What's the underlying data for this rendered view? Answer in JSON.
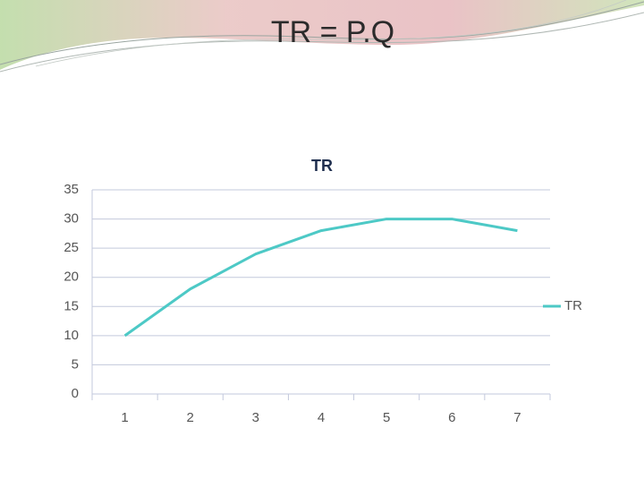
{
  "slide_title": "TR = P.Q",
  "chart_data": {
    "type": "line",
    "title": "TR",
    "categories": [
      "1",
      "2",
      "3",
      "4",
      "5",
      "6",
      "7"
    ],
    "series": [
      {
        "name": "TR",
        "color": "#4dc9c6",
        "values": [
          10,
          18,
          24,
          28,
          30,
          30,
          28
        ]
      }
    ],
    "ylim": [
      0,
      35
    ],
    "yticks": [
      0,
      5,
      10,
      15,
      20,
      25,
      30,
      35
    ],
    "grid": true,
    "legend": "right"
  }
}
